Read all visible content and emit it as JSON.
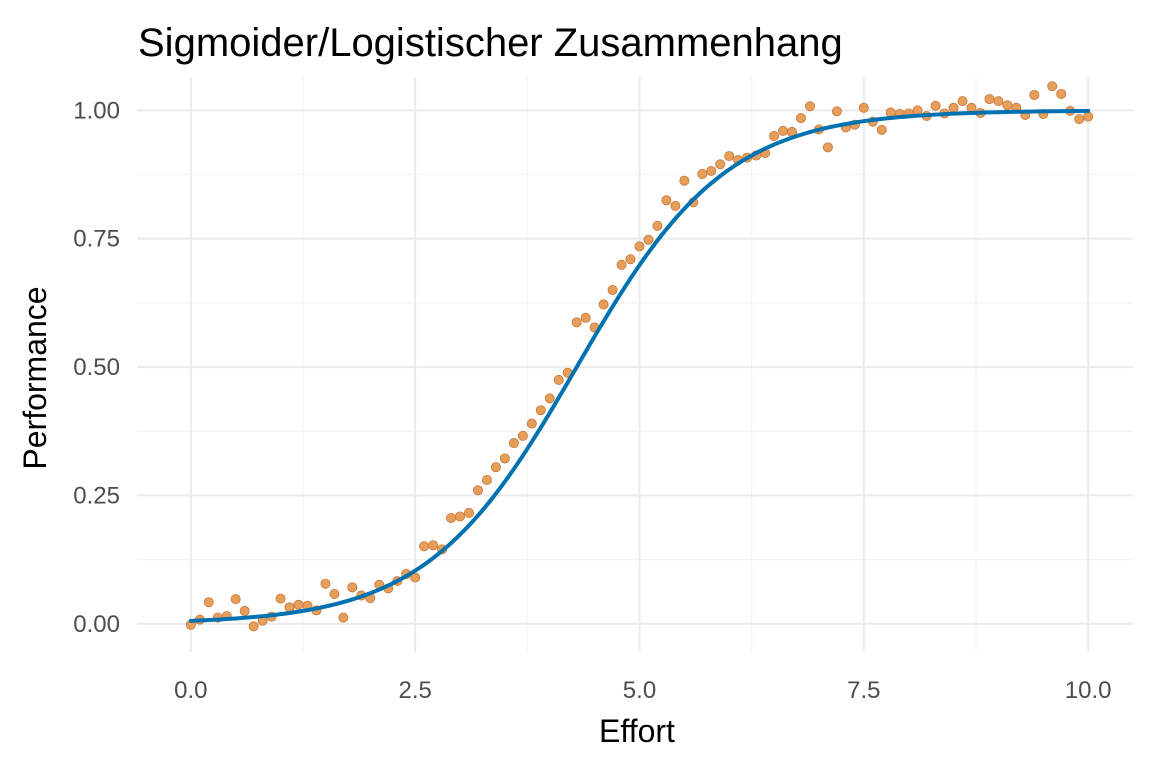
{
  "chart_data": {
    "type": "scatter",
    "title": "Sigmoider/Logistischer Zusammenhang",
    "xlabel": "Effort",
    "ylabel": "Performance",
    "xlim": [
      -0.6,
      10.5
    ],
    "ylim": [
      -0.055,
      1.065
    ],
    "x_ticks": [
      0,
      2.5,
      5,
      7.5,
      10
    ],
    "x_tick_labels": [
      "0.0",
      "2.5",
      "5.0",
      "7.5",
      "10.0"
    ],
    "y_ticks": [
      0,
      0.25,
      0.5,
      0.75,
      1
    ],
    "y_tick_labels": [
      "0.00",
      "0.25",
      "0.50",
      "0.75",
      "1.00"
    ],
    "x_minor": [
      1.25,
      3.75,
      6.25,
      8.75
    ],
    "y_minor": [
      0.125,
      0.375,
      0.625,
      0.875
    ],
    "grid": true,
    "legend": "none",
    "point_color": "#e69f5a",
    "point_edge_color": "#c8783a",
    "line_color": "#0072b2",
    "fit": {
      "model": "logistic",
      "L": 1,
      "k": 1.2,
      "x0": 4.3,
      "x_range": [
        0,
        10
      ],
      "values": [
        [
          0,
          0.006
        ],
        [
          1,
          0.019
        ],
        [
          2,
          0.06
        ],
        [
          2.5,
          0.101
        ],
        [
          3,
          0.173
        ],
        [
          3.5,
          0.277
        ],
        [
          4,
          0.411
        ],
        [
          4.3,
          0.5
        ],
        [
          5,
          0.698
        ],
        [
          5.5,
          0.809
        ],
        [
          6,
          0.885
        ],
        [
          6.5,
          0.933
        ],
        [
          7,
          0.962
        ],
        [
          8,
          0.988
        ],
        [
          9,
          0.996
        ],
        [
          10,
          0.999
        ]
      ]
    },
    "points": [
      [
        0.0,
        -0.002
      ],
      [
        0.1,
        0.008
      ],
      [
        0.2,
        0.042
      ],
      [
        0.3,
        0.012
      ],
      [
        0.4,
        0.015
      ],
      [
        0.5,
        0.048
      ],
      [
        0.6,
        0.025
      ],
      [
        0.7,
        -0.005
      ],
      [
        0.8,
        0.006
      ],
      [
        0.9,
        0.014
      ],
      [
        1.0,
        0.049
      ],
      [
        1.1,
        0.032
      ],
      [
        1.2,
        0.037
      ],
      [
        1.3,
        0.035
      ],
      [
        1.4,
        0.026
      ],
      [
        1.5,
        0.078
      ],
      [
        1.6,
        0.058
      ],
      [
        1.7,
        0.012
      ],
      [
        1.8,
        0.071
      ],
      [
        1.9,
        0.055
      ],
      [
        2.0,
        0.05
      ],
      [
        2.1,
        0.076
      ],
      [
        2.2,
        0.069
      ],
      [
        2.3,
        0.083
      ],
      [
        2.4,
        0.097
      ],
      [
        2.5,
        0.09
      ],
      [
        2.6,
        0.151
      ],
      [
        2.7,
        0.153
      ],
      [
        2.8,
        0.145
      ],
      [
        2.9,
        0.206
      ],
      [
        3.0,
        0.209
      ],
      [
        3.1,
        0.216
      ],
      [
        3.2,
        0.26
      ],
      [
        3.3,
        0.28
      ],
      [
        3.4,
        0.305
      ],
      [
        3.5,
        0.322
      ],
      [
        3.6,
        0.352
      ],
      [
        3.7,
        0.366
      ],
      [
        3.8,
        0.39
      ],
      [
        3.9,
        0.416
      ],
      [
        4.0,
        0.439
      ],
      [
        4.1,
        0.475
      ],
      [
        4.2,
        0.489
      ],
      [
        4.3,
        0.587
      ],
      [
        4.4,
        0.596
      ],
      [
        4.5,
        0.577
      ],
      [
        4.6,
        0.622
      ],
      [
        4.7,
        0.65
      ],
      [
        4.8,
        0.699
      ],
      [
        4.9,
        0.71
      ],
      [
        5.0,
        0.735
      ],
      [
        5.1,
        0.748
      ],
      [
        5.2,
        0.775
      ],
      [
        5.3,
        0.825
      ],
      [
        5.4,
        0.814
      ],
      [
        5.5,
        0.863
      ],
      [
        5.6,
        0.821
      ],
      [
        5.7,
        0.876
      ],
      [
        5.8,
        0.882
      ],
      [
        5.9,
        0.895
      ],
      [
        6.0,
        0.911
      ],
      [
        6.1,
        0.903
      ],
      [
        6.2,
        0.908
      ],
      [
        6.3,
        0.912
      ],
      [
        6.4,
        0.917
      ],
      [
        6.5,
        0.95
      ],
      [
        6.6,
        0.96
      ],
      [
        6.7,
        0.958
      ],
      [
        6.8,
        0.985
      ],
      [
        6.9,
        1.008
      ],
      [
        7.0,
        0.963
      ],
      [
        7.1,
        0.928
      ],
      [
        7.2,
        0.998
      ],
      [
        7.3,
        0.967
      ],
      [
        7.4,
        0.972
      ],
      [
        7.5,
        1.005
      ],
      [
        7.6,
        0.978
      ],
      [
        7.7,
        0.962
      ],
      [
        7.8,
        0.996
      ],
      [
        7.9,
        0.993
      ],
      [
        8.0,
        0.994
      ],
      [
        8.1,
        1.0
      ],
      [
        8.2,
        0.989
      ],
      [
        8.3,
        1.009
      ],
      [
        8.4,
        0.994
      ],
      [
        8.5,
        1.005
      ],
      [
        8.6,
        1.018
      ],
      [
        8.7,
        1.005
      ],
      [
        8.8,
        0.995
      ],
      [
        8.9,
        1.022
      ],
      [
        9.0,
        1.018
      ],
      [
        9.1,
        1.01
      ],
      [
        9.2,
        1.005
      ],
      [
        9.3,
        0.991
      ],
      [
        9.4,
        1.03
      ],
      [
        9.5,
        0.993
      ],
      [
        9.6,
        1.047
      ],
      [
        9.7,
        1.032
      ],
      [
        9.8,
        0.999
      ],
      [
        9.9,
        0.983
      ],
      [
        10.0,
        0.988
      ]
    ]
  }
}
